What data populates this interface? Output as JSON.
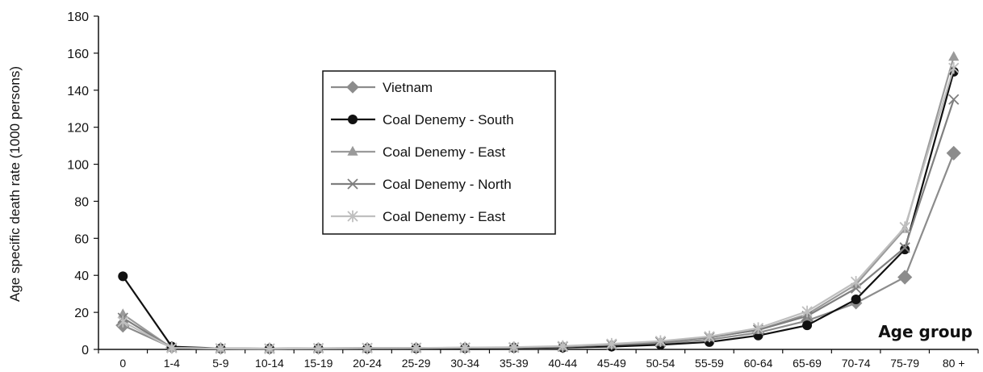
{
  "chart_data": {
    "type": "line",
    "ylabel": "Age specific death rate (1000 persons)",
    "xlabel": "Age group",
    "categories": [
      "0",
      "1-4",
      "5-9",
      "10-14",
      "15-19",
      "20-24",
      "25-29",
      "30-34",
      "35-39",
      "40-44",
      "45-49",
      "50-54",
      "55-59",
      "60-64",
      "65-69",
      "70-74",
      "75-79",
      "80 +"
    ],
    "yticks": [
      0,
      20,
      40,
      60,
      80,
      100,
      120,
      140,
      160,
      180
    ],
    "ylim": [
      0,
      180
    ],
    "grid": false,
    "legend_position": "upper-center",
    "series": [
      {
        "name": "Vietnam",
        "color": "#8c8c8c",
        "marker": "diamond",
        "values": [
          13,
          1,
          0.5,
          0.4,
          0.5,
          0.6,
          0.7,
          0.8,
          1.0,
          1.3,
          2.0,
          3.2,
          5.3,
          9.0,
          15.5,
          25,
          39,
          106
        ]
      },
      {
        "name": "Coal Denemy - South",
        "color": "#111111",
        "marker": "circle",
        "values": [
          39.5,
          1.5,
          0.5,
          0.4,
          0.5,
          0.5,
          0.6,
          0.7,
          0.8,
          1.0,
          1.5,
          2.5,
          4.0,
          7.5,
          13,
          27,
          54,
          150
        ]
      },
      {
        "name": "Coal Denemy - East",
        "color": "#9a9a9a",
        "marker": "triangle",
        "values": [
          19,
          0.8,
          0.5,
          0.4,
          0.6,
          0.7,
          0.8,
          0.9,
          1.0,
          1.5,
          2.5,
          4.0,
          6.5,
          10.5,
          19,
          35,
          65,
          158
        ]
      },
      {
        "name": "Coal Denemy - North",
        "color": "#7f7f7f",
        "marker": "x",
        "values": [
          17,
          0.8,
          0.5,
          0.4,
          0.6,
          0.7,
          0.8,
          0.9,
          1.0,
          1.5,
          2.5,
          4.0,
          6.5,
          10.5,
          18,
          33,
          55,
          135
        ]
      },
      {
        "name": "Coal Denemy - East",
        "color": "#bfbfbf",
        "marker": "star",
        "values": [
          15,
          0.8,
          0.5,
          0.4,
          0.6,
          0.7,
          0.8,
          1.0,
          1.2,
          1.8,
          3.0,
          4.5,
          7.0,
          11.5,
          20.5,
          36.5,
          66,
          152
        ]
      }
    ]
  }
}
